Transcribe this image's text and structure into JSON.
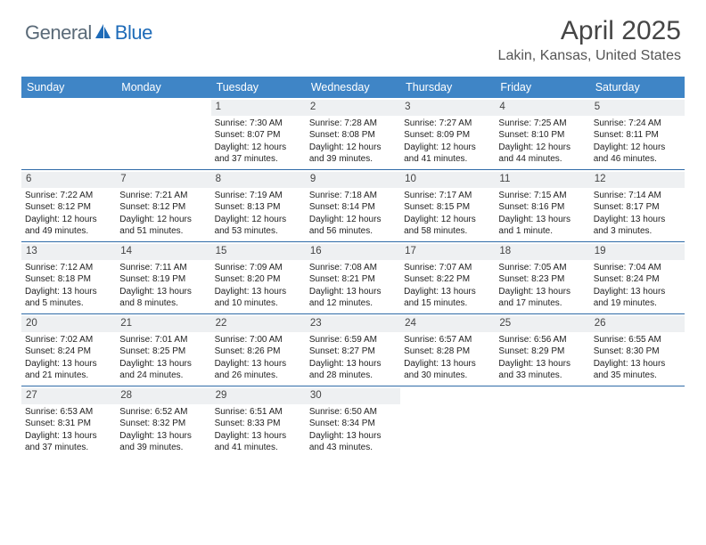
{
  "brand": {
    "part1": "General",
    "part2": "Blue"
  },
  "title": "April 2025",
  "location": "Lakin, Kansas, United States",
  "colors": {
    "header_bg": "#3f85c6",
    "daynum_bg": "#eef0f2",
    "row_border": "#2f6ba8",
    "logo_blue": "#1e6bb8",
    "logo_gray": "#5a6a78"
  },
  "day_headers": [
    "Sunday",
    "Monday",
    "Tuesday",
    "Wednesday",
    "Thursday",
    "Friday",
    "Saturday"
  ],
  "weeks": [
    [
      {
        "n": "",
        "sr": "",
        "ss": "",
        "dl": ""
      },
      {
        "n": "",
        "sr": "",
        "ss": "",
        "dl": ""
      },
      {
        "n": "1",
        "sr": "7:30 AM",
        "ss": "8:07 PM",
        "dl": "12 hours and 37 minutes."
      },
      {
        "n": "2",
        "sr": "7:28 AM",
        "ss": "8:08 PM",
        "dl": "12 hours and 39 minutes."
      },
      {
        "n": "3",
        "sr": "7:27 AM",
        "ss": "8:09 PM",
        "dl": "12 hours and 41 minutes."
      },
      {
        "n": "4",
        "sr": "7:25 AM",
        "ss": "8:10 PM",
        "dl": "12 hours and 44 minutes."
      },
      {
        "n": "5",
        "sr": "7:24 AM",
        "ss": "8:11 PM",
        "dl": "12 hours and 46 minutes."
      }
    ],
    [
      {
        "n": "6",
        "sr": "7:22 AM",
        "ss": "8:12 PM",
        "dl": "12 hours and 49 minutes."
      },
      {
        "n": "7",
        "sr": "7:21 AM",
        "ss": "8:12 PM",
        "dl": "12 hours and 51 minutes."
      },
      {
        "n": "8",
        "sr": "7:19 AM",
        "ss": "8:13 PM",
        "dl": "12 hours and 53 minutes."
      },
      {
        "n": "9",
        "sr": "7:18 AM",
        "ss": "8:14 PM",
        "dl": "12 hours and 56 minutes."
      },
      {
        "n": "10",
        "sr": "7:17 AM",
        "ss": "8:15 PM",
        "dl": "12 hours and 58 minutes."
      },
      {
        "n": "11",
        "sr": "7:15 AM",
        "ss": "8:16 PM",
        "dl": "13 hours and 1 minute."
      },
      {
        "n": "12",
        "sr": "7:14 AM",
        "ss": "8:17 PM",
        "dl": "13 hours and 3 minutes."
      }
    ],
    [
      {
        "n": "13",
        "sr": "7:12 AM",
        "ss": "8:18 PM",
        "dl": "13 hours and 5 minutes."
      },
      {
        "n": "14",
        "sr": "7:11 AM",
        "ss": "8:19 PM",
        "dl": "13 hours and 8 minutes."
      },
      {
        "n": "15",
        "sr": "7:09 AM",
        "ss": "8:20 PM",
        "dl": "13 hours and 10 minutes."
      },
      {
        "n": "16",
        "sr": "7:08 AM",
        "ss": "8:21 PM",
        "dl": "13 hours and 12 minutes."
      },
      {
        "n": "17",
        "sr": "7:07 AM",
        "ss": "8:22 PM",
        "dl": "13 hours and 15 minutes."
      },
      {
        "n": "18",
        "sr": "7:05 AM",
        "ss": "8:23 PM",
        "dl": "13 hours and 17 minutes."
      },
      {
        "n": "19",
        "sr": "7:04 AM",
        "ss": "8:24 PM",
        "dl": "13 hours and 19 minutes."
      }
    ],
    [
      {
        "n": "20",
        "sr": "7:02 AM",
        "ss": "8:24 PM",
        "dl": "13 hours and 21 minutes."
      },
      {
        "n": "21",
        "sr": "7:01 AM",
        "ss": "8:25 PM",
        "dl": "13 hours and 24 minutes."
      },
      {
        "n": "22",
        "sr": "7:00 AM",
        "ss": "8:26 PM",
        "dl": "13 hours and 26 minutes."
      },
      {
        "n": "23",
        "sr": "6:59 AM",
        "ss": "8:27 PM",
        "dl": "13 hours and 28 minutes."
      },
      {
        "n": "24",
        "sr": "6:57 AM",
        "ss": "8:28 PM",
        "dl": "13 hours and 30 minutes."
      },
      {
        "n": "25",
        "sr": "6:56 AM",
        "ss": "8:29 PM",
        "dl": "13 hours and 33 minutes."
      },
      {
        "n": "26",
        "sr": "6:55 AM",
        "ss": "8:30 PM",
        "dl": "13 hours and 35 minutes."
      }
    ],
    [
      {
        "n": "27",
        "sr": "6:53 AM",
        "ss": "8:31 PM",
        "dl": "13 hours and 37 minutes."
      },
      {
        "n": "28",
        "sr": "6:52 AM",
        "ss": "8:32 PM",
        "dl": "13 hours and 39 minutes."
      },
      {
        "n": "29",
        "sr": "6:51 AM",
        "ss": "8:33 PM",
        "dl": "13 hours and 41 minutes."
      },
      {
        "n": "30",
        "sr": "6:50 AM",
        "ss": "8:34 PM",
        "dl": "13 hours and 43 minutes."
      },
      {
        "n": "",
        "sr": "",
        "ss": "",
        "dl": ""
      },
      {
        "n": "",
        "sr": "",
        "ss": "",
        "dl": ""
      },
      {
        "n": "",
        "sr": "",
        "ss": "",
        "dl": ""
      }
    ]
  ],
  "labels": {
    "sunrise": "Sunrise: ",
    "sunset": "Sunset: ",
    "daylight": "Daylight: "
  }
}
